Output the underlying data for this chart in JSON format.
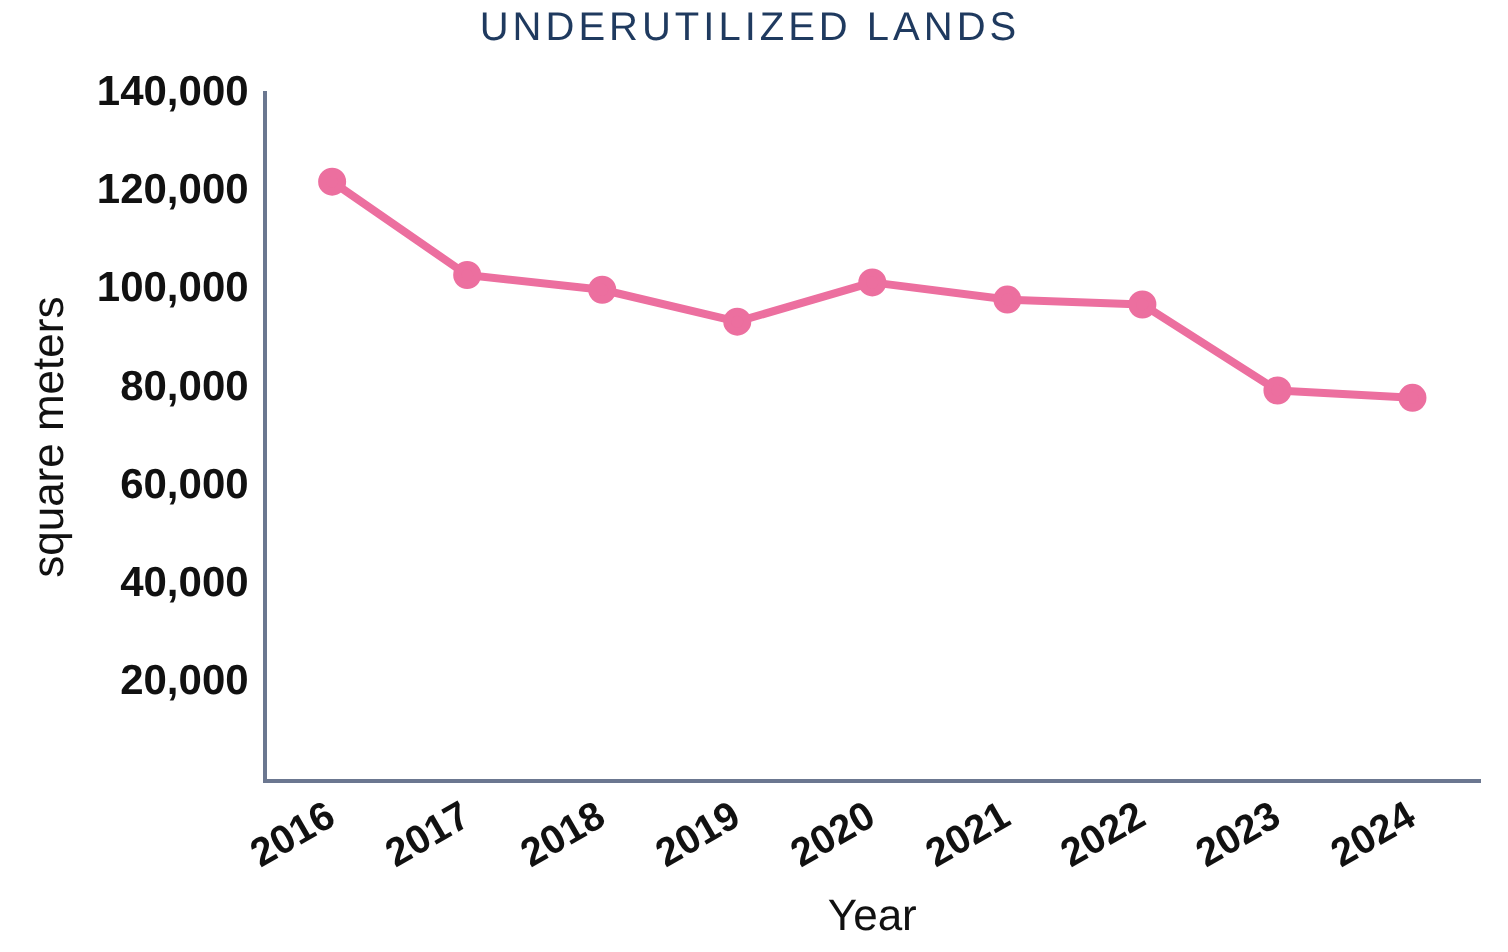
{
  "chart_data": {
    "type": "line",
    "title": "UNDERUTILIZED LANDS",
    "xlabel": "Year",
    "ylabel": "square meters",
    "categories": [
      "2016",
      "2017",
      "2018",
      "2019",
      "2020",
      "2021",
      "2022",
      "2023",
      "2024"
    ],
    "series": [
      {
        "color": "#ec6f9f",
        "values": [
          122000,
          103000,
          100000,
          93500,
          101500,
          98000,
          97000,
          79500,
          78000
        ]
      }
    ],
    "ylim": [
      0,
      140000
    ],
    "yticks": [
      {
        "value": 20000,
        "label": "20,000"
      },
      {
        "value": 40000,
        "label": "40,000"
      },
      {
        "value": 60000,
        "label": "60,000"
      },
      {
        "value": 80000,
        "label": "80,000"
      },
      {
        "value": 100000,
        "label": "100,000"
      },
      {
        "value": 120000,
        "label": "120,000"
      },
      {
        "value": 140000,
        "label": "140,000"
      }
    ],
    "grid": false,
    "legend": false,
    "marker": "circle",
    "line_style": "solid"
  }
}
